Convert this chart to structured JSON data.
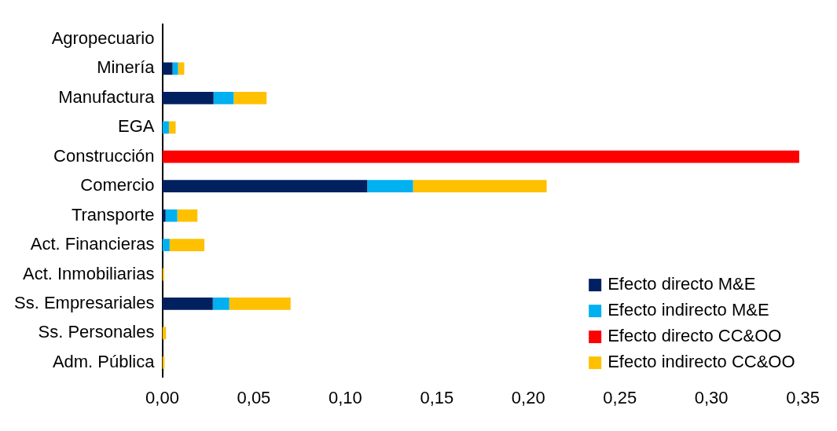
{
  "chart_data": {
    "type": "bar",
    "orientation": "horizontal",
    "stacked": true,
    "categories": [
      "Agropecuario",
      "Minería",
      "Manufactura",
      "EGA",
      "Construcción",
      "Comercio",
      "Transporte",
      "Act. Financieras",
      "Act. Inmobiliarias",
      "Ss. Empresariales",
      "Ss. Personales",
      "Adm. Pública"
    ],
    "series": [
      {
        "name": "Efecto directo M&E",
        "color": "#002060",
        "values": [
          0,
          0.0056,
          0.028,
          0,
          0,
          0.112,
          0.0018,
          0,
          0,
          0.0276,
          0,
          0
        ]
      },
      {
        "name": "Efecto indirecto M&E",
        "color": "#00b0f0",
        "values": [
          0,
          0.003,
          0.011,
          0.0036,
          0,
          0.025,
          0.0064,
          0.004,
          0,
          0.009,
          0,
          0
        ]
      },
      {
        "name": "Efecto directo CC&OO",
        "color": "#ff0000",
        "values": [
          0,
          0,
          0,
          0,
          0.348,
          0,
          0,
          0,
          0,
          0,
          0,
          0
        ]
      },
      {
        "name": "Efecto indirecto CC&OO",
        "color": "#ffc000",
        "values": [
          0,
          0.0034,
          0.018,
          0.0037,
          0,
          0.073,
          0.011,
          0.019,
          0.001,
          0.0335,
          0.002,
          0.0012
        ]
      }
    ],
    "xlim": [
      0,
      0.35
    ],
    "xticks": [
      {
        "value": 0,
        "label": "0,00"
      },
      {
        "value": 0.05,
        "label": "0,05"
      },
      {
        "value": 0.1,
        "label": "0,10"
      },
      {
        "value": 0.15,
        "label": "0,15"
      },
      {
        "value": 0.2,
        "label": "0,20"
      },
      {
        "value": 0.25,
        "label": "0,25"
      },
      {
        "value": 0.3,
        "label": "0,30"
      },
      {
        "value": 0.35,
        "label": "0,35"
      }
    ],
    "grid": false,
    "legend": "bottom right"
  }
}
